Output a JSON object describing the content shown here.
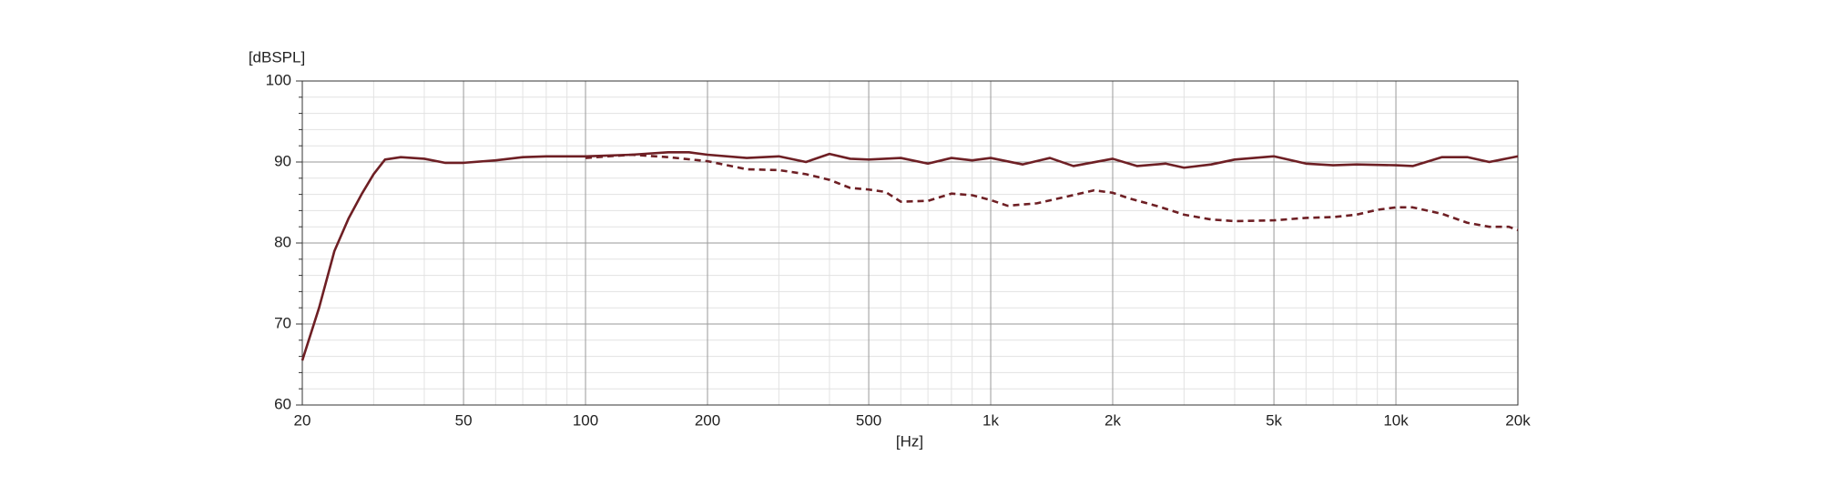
{
  "chart_data": {
    "type": "line",
    "ylabel": "[dBSPL]",
    "xlabel": "[Hz]",
    "xscale": "log",
    "grid": true,
    "xlim": [
      20,
      20000
    ],
    "ylim": [
      60,
      100
    ],
    "xticks": [
      20,
      50,
      100,
      200,
      500,
      {
        "value": 1000,
        "label": "1k"
      },
      {
        "value": 2000,
        "label": "2k"
      },
      {
        "value": 5000,
        "label": "5k"
      },
      {
        "value": 10000,
        "label": "10k"
      },
      {
        "value": 20000,
        "label": "20k"
      }
    ],
    "yticks": [
      60,
      70,
      80,
      90,
      100
    ],
    "xminor": [
      30,
      40,
      60,
      70,
      80,
      90,
      300,
      400,
      600,
      700,
      800,
      900,
      3000,
      4000,
      6000,
      7000,
      8000,
      9000
    ],
    "yminor": [
      62,
      64,
      66,
      68,
      72,
      74,
      76,
      78,
      82,
      84,
      86,
      88,
      92,
      94,
      96,
      98
    ],
    "series": [
      {
        "color": "#6e1f24",
        "style": "solid",
        "x": [
          20,
          22,
          24,
          26,
          28,
          30,
          32,
          35,
          40,
          45,
          50,
          60,
          70,
          80,
          100,
          130,
          160,
          180,
          200,
          250,
          300,
          350,
          400,
          450,
          500,
          600,
          700,
          800,
          900,
          1000,
          1200,
          1400,
          1600,
          2000,
          2300,
          2700,
          3000,
          3500,
          4000,
          5000,
          6000,
          7000,
          8000,
          10000,
          11000,
          13000,
          15000,
          17000,
          20000
        ],
        "values": [
          65.5,
          72,
          79,
          83,
          86,
          88.5,
          90.3,
          90.6,
          90.4,
          89.9,
          89.9,
          90.2,
          90.6,
          90.7,
          90.7,
          90.9,
          91.2,
          91.2,
          90.9,
          90.5,
          90.7,
          90.0,
          91.0,
          90.4,
          90.3,
          90.5,
          89.8,
          90.5,
          90.2,
          90.5,
          89.7,
          90.5,
          89.5,
          90.4,
          89.5,
          89.8,
          89.3,
          89.7,
          90.3,
          90.7,
          89.8,
          89.6,
          89.7,
          89.6,
          89.5,
          90.6,
          90.6,
          90.0,
          90.7
        ]
      },
      {
        "color": "#6e1f24",
        "style": "dashed",
        "x": [
          100,
          130,
          160,
          200,
          250,
          300,
          350,
          400,
          450,
          500,
          550,
          600,
          700,
          800,
          900,
          1000,
          1100,
          1300,
          1500,
          1800,
          2000,
          2200,
          2600,
          3000,
          3500,
          4000,
          5000,
          6000,
          7000,
          8000,
          9000,
          10000,
          11000,
          13000,
          15000,
          17000,
          19000,
          20000
        ],
        "values": [
          90.5,
          90.9,
          90.6,
          90.1,
          89.1,
          89.0,
          88.5,
          87.8,
          86.8,
          86.6,
          86.3,
          85.1,
          85.2,
          86.1,
          85.9,
          85.3,
          84.6,
          84.9,
          85.6,
          86.5,
          86.2,
          85.5,
          84.5,
          83.5,
          82.9,
          82.7,
          82.8,
          83.1,
          83.2,
          83.5,
          84.1,
          84.4,
          84.4,
          83.6,
          82.5,
          82.0,
          82.0,
          81.6
        ]
      }
    ]
  }
}
